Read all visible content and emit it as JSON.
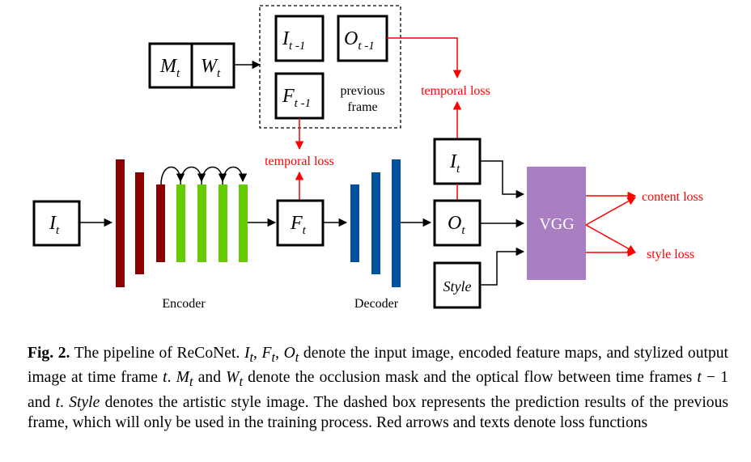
{
  "figure": {
    "labels": {
      "mt": "M",
      "mt_sub": "t",
      "wt": "W",
      "wt_sub": "t",
      "i_prev": "I",
      "i_prev_sub": "t -1",
      "o_prev": "O",
      "o_prev_sub": "t -1",
      "f_prev": "F",
      "f_prev_sub": "t -1",
      "previous_frame_1": "previous",
      "previous_frame_2": "frame",
      "temporal_loss_top": "temporal loss",
      "temporal_loss_mid": "temporal loss",
      "input": "I",
      "input_sub": "t",
      "f_t": "F",
      "f_t_sub": "t",
      "i_t": "I",
      "i_t_sub": "t",
      "o_t": "O",
      "o_t_sub": "t",
      "style": "Style",
      "vgg": "VGG",
      "content_loss": "content loss",
      "style_loss": "style loss",
      "encoder": "Encoder",
      "decoder": "Decoder"
    },
    "colors": {
      "encoder_red": "#8B0000",
      "encoder_green": "#66CC00",
      "decoder_blue": "#00509E",
      "vgg_purple": "#A97FC1",
      "loss_red": "#FF0000"
    }
  },
  "caption": {
    "label": "Fig. 2.",
    "p1": " The pipeline of ReCoNet. ",
    "m1": "I",
    "m1s": "t",
    "c1": ", ",
    "m2": "F",
    "m2s": "t",
    "c2": ", ",
    "m3": "O",
    "m3s": "t",
    "p2": " denote the input image, encoded feature maps, and stylized output image at time frame ",
    "m4": "t",
    "p3": ". ",
    "m5": "M",
    "m5s": "t",
    "p4": " and ",
    "m6": "W",
    "m6s": "t",
    "p5": " denote the occlusion mask and the optical flow between time frames ",
    "m7": "t",
    "p6": " − 1 and ",
    "m8": "t",
    "p7": ". ",
    "style_word": "Style",
    "p8": " denotes the artistic style image. The dashed box represents the prediction results of the previous frame, which will only be used in the training process. Red arrows and texts denote loss functions"
  }
}
